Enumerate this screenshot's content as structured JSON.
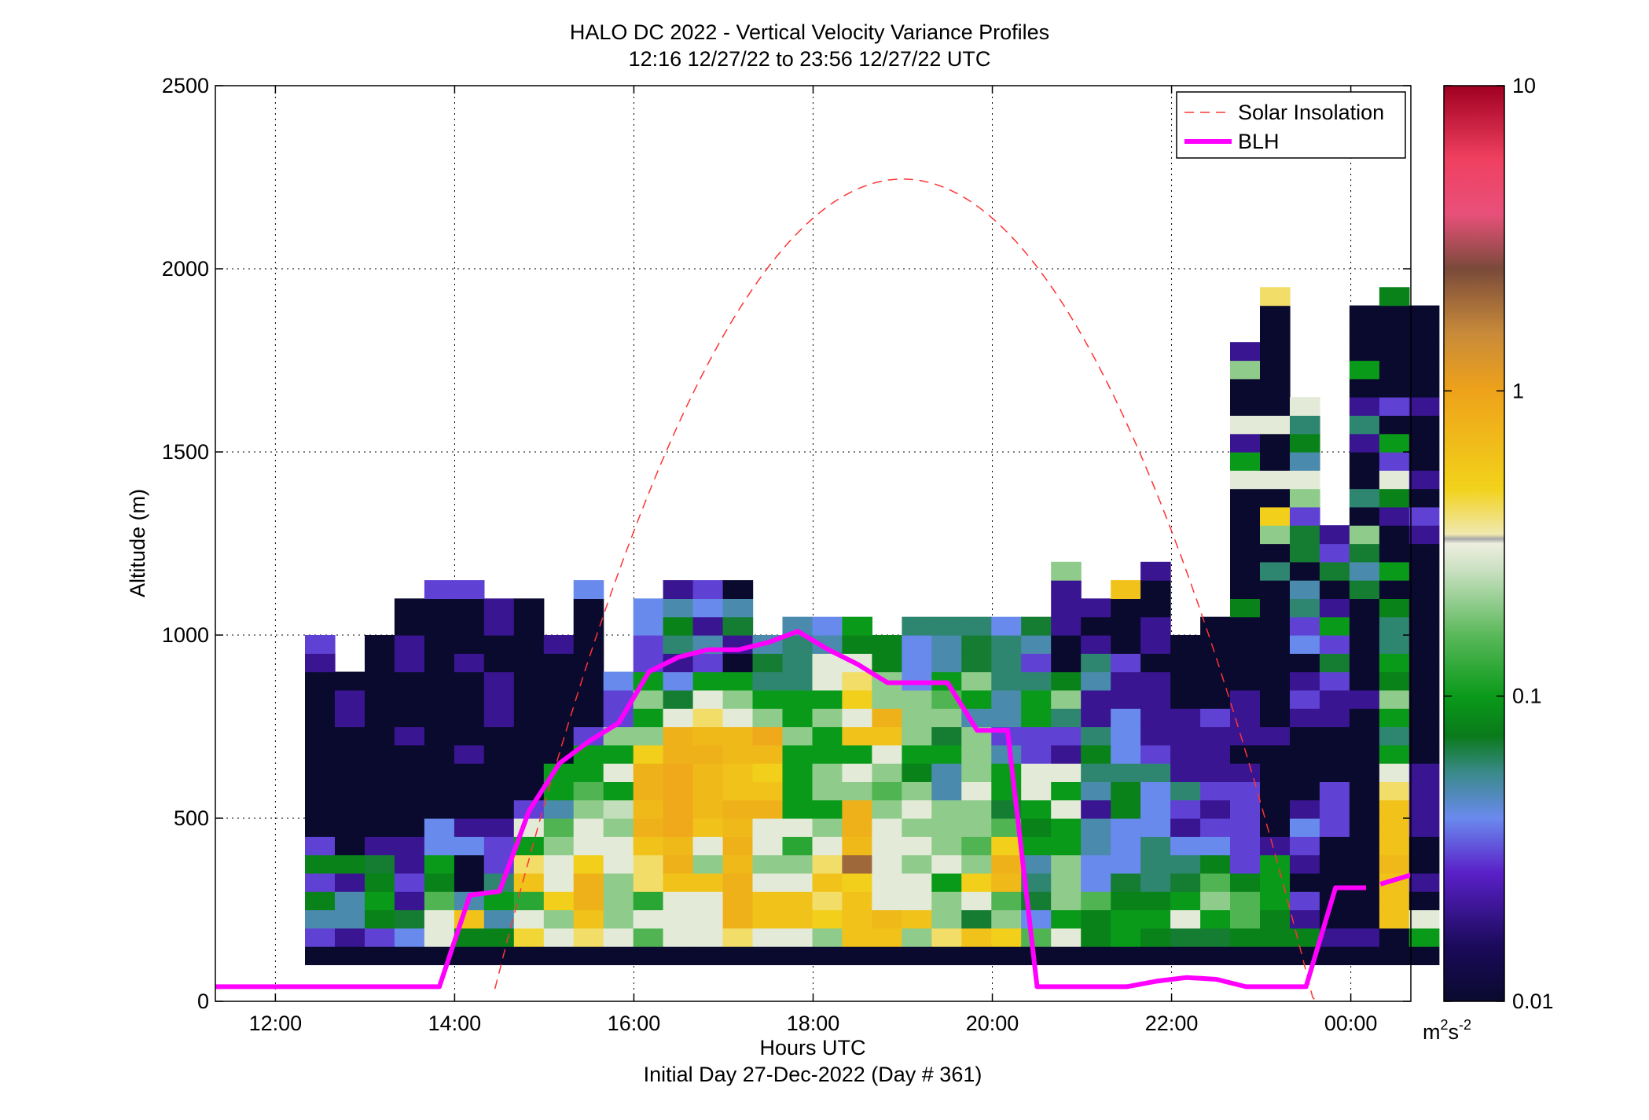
{
  "chart_data": {
    "type": "heatmap",
    "title_line1": "HALO DC 2022 - Vertical Velocity Variance Profiles",
    "title_line2": "12:16 12/27/22 to 23:56 12/27/22  UTC",
    "xlabel": "Hours UTC",
    "xlabel2": "Initial Day 27-Dec-2022 (Day # 361)",
    "ylabel": "Altitude (m)",
    "xlim": [
      11.33,
      24.67
    ],
    "ylim": [
      0,
      2500
    ],
    "grid": true,
    "x_ticks": [
      12,
      14,
      16,
      18,
      20,
      22,
      24
    ],
    "x_tick_labels": [
      "12:00",
      "14:00",
      "16:00",
      "18:00",
      "20:00",
      "22:00",
      "00:00"
    ],
    "y_ticks": [
      0,
      500,
      1000,
      1500,
      2000,
      2500
    ],
    "y_tick_labels": [
      "0",
      "500",
      "1000",
      "1500",
      "2000",
      "2500"
    ],
    "colorbar": {
      "scale": "log",
      "range": [
        0.01,
        10
      ],
      "ticks": [
        0.01,
        0.1,
        1,
        10
      ],
      "tick_labels": [
        "0.01",
        "0.1",
        "1",
        "10"
      ],
      "unit_base": "m",
      "unit_sup1": "2",
      "unit_mid": "s",
      "unit_sup2": "-2"
    },
    "legend": {
      "placement": "top-right",
      "entries": [
        {
          "label": "Solar Insolation",
          "style": "dashed",
          "color": "#ff3333"
        },
        {
          "label": "BLH",
          "style": "solid",
          "color": "#ff00ff"
        }
      ]
    },
    "heatmap": {
      "x_start": 12.33,
      "x_step": 0.333,
      "y_start": 100,
      "y_step": 50,
      "note_values": "m2 s-2",
      "columns": [
        [
          0.01,
          0.03,
          0.05,
          0.08,
          0.03,
          0.08,
          0.03,
          0.01,
          0.01,
          0.01,
          0.01,
          0.01,
          0.01,
          0.01,
          0.01,
          0.01,
          0.02,
          0.03
        ],
        [
          0.01,
          0.02,
          0.05,
          0.05,
          0.02,
          0.08,
          0.01,
          0.01,
          0.01,
          0.01,
          0.01,
          0.01,
          0.01,
          0.02,
          0.02,
          0.01
        ],
        [
          0.01,
          0.03,
          0.08,
          0.1,
          0.08,
          0.07,
          0.02,
          0.01,
          0.01,
          0.01,
          0.01,
          0.01,
          0.01,
          0.01,
          0.01,
          0.01,
          0.01,
          0.01
        ],
        [
          0.01,
          0.04,
          0.07,
          0.02,
          0.03,
          0.02,
          0.02,
          0.01,
          0.01,
          0.01,
          0.01,
          0.01,
          0.02,
          0.01,
          0.01,
          0.01,
          0.02,
          0.02,
          0.01,
          0.01
        ],
        [
          0.01,
          0.3,
          0.3,
          0.15,
          0.08,
          0.1,
          0.04,
          0.04,
          0.01,
          0.01,
          0.01,
          0.01,
          0.01,
          0.01,
          0.01,
          0.01,
          0.01,
          0.01,
          0.01,
          0.01,
          0.03
        ],
        [
          0.01,
          0.08,
          0.6,
          0.05,
          0.01,
          0.01,
          0.04,
          0.02,
          0.01,
          0.01,
          0.01,
          0.02,
          0.01,
          0.01,
          0.01,
          0.01,
          0.02,
          0.01,
          0.01,
          0.01,
          0.03
        ],
        [
          0.01,
          0.08,
          0.05,
          0.1,
          0.06,
          0.03,
          0.03,
          0.02,
          0.01,
          0.01,
          0.01,
          0.01,
          0.01,
          0.02,
          0.02,
          0.02,
          0.01,
          0.01,
          0.02,
          0.02
        ],
        [
          0.01,
          0.45,
          0.3,
          0.12,
          0.6,
          0.4,
          0.1,
          0.3,
          0.03,
          0.01,
          0.01,
          0.01,
          0.01,
          0.01,
          0.01,
          0.01,
          0.01,
          0.01,
          0.01,
          0.01
        ],
        [
          0.01,
          0.3,
          0.2,
          0.5,
          0.3,
          0.3,
          0.2,
          0.15,
          0.05,
          0.1,
          0.1,
          0.01,
          0.01,
          0.01,
          0.01,
          0.01,
          0.01,
          0.02
        ],
        [
          0.01,
          0.4,
          0.6,
          0.8,
          0.8,
          0.5,
          0.3,
          0.3,
          0.2,
          0.15,
          0.1,
          0.1,
          0.03,
          0.01,
          0.01,
          0.01,
          0.01,
          0.01,
          0.01,
          0.01,
          0.04
        ],
        [
          0.01,
          0.3,
          0.2,
          0.2,
          0.2,
          0.3,
          0.3,
          0.2,
          0.25,
          0.1,
          0.3,
          0.1,
          0.2,
          0.03,
          0.03,
          0.04
        ],
        [
          0.01,
          0.15,
          0.3,
          0.12,
          0.4,
          0.4,
          0.6,
          0.8,
          0.7,
          0.8,
          0.8,
          0.5,
          0.2,
          0.1,
          0.2,
          0.1,
          0.03,
          0.03,
          0.04,
          0.04
        ],
        [
          0.01,
          0.3,
          0.3,
          0.3,
          0.6,
          0.8,
          0.7,
          0.9,
          0.9,
          0.9,
          0.9,
          0.8,
          0.8,
          0.3,
          0.07,
          0.04,
          0.02,
          0.06,
          0.08,
          0.05,
          0.02
        ],
        [
          0.01,
          0.3,
          0.3,
          0.3,
          0.6,
          0.2,
          0.3,
          0.6,
          0.7,
          0.7,
          0.7,
          0.8,
          0.7,
          0.4,
          0.3,
          0.1,
          0.03,
          0.05,
          0.02,
          0.04,
          0.03
        ],
        [
          0.01,
          0.4,
          0.8,
          0.8,
          0.8,
          0.7,
          0.8,
          0.7,
          0.8,
          0.6,
          0.6,
          0.7,
          0.7,
          0.3,
          0.2,
          0.1,
          0.01,
          0.02,
          0.07,
          0.05,
          0.01
        ],
        [
          0.01,
          0.3,
          0.6,
          0.6,
          0.3,
          0.2,
          0.3,
          0.3,
          0.8,
          0.6,
          0.5,
          0.7,
          0.9,
          0.2,
          0.1,
          0.06,
          0.07,
          0.05
        ],
        [
          0.01,
          0.3,
          0.6,
          0.6,
          0.3,
          0.2,
          0.12,
          0.3,
          0.1,
          0.1,
          0.1,
          0.1,
          0.2,
          0.1,
          0.1,
          0.06,
          0.06,
          0.06,
          0.05
        ],
        [
          0.01,
          0.2,
          0.5,
          0.4,
          0.6,
          0.4,
          0.3,
          0.2,
          0.1,
          0.2,
          0.2,
          0.1,
          0.1,
          0.2,
          0.1,
          0.3,
          0.3,
          0.05,
          0.04
        ],
        [
          0.01,
          0.6,
          0.6,
          0.6,
          0.5,
          2.0,
          0.7,
          0.8,
          0.8,
          0.2,
          0.3,
          0.1,
          0.6,
          0.3,
          0.5,
          0.4,
          0.3,
          0.08,
          0.1
        ],
        [
          0.01,
          0.6,
          0.7,
          0.3,
          0.3,
          0.3,
          0.3,
          0.3,
          0.2,
          0.15,
          0.2,
          0.3,
          0.6,
          0.8,
          0.2,
          0.2,
          0.08,
          0.08
        ],
        [
          0.01,
          0.2,
          0.6,
          0.3,
          0.3,
          0.2,
          0.3,
          0.2,
          0.3,
          0.2,
          0.08,
          0.1,
          0.2,
          0.2,
          0.2,
          0.04,
          0.04,
          0.04,
          0.06
        ],
        [
          0.01,
          0.4,
          0.2,
          0.2,
          0.1,
          0.3,
          0.2,
          0.2,
          0.2,
          0.05,
          0.05,
          0.1,
          0.07,
          0.2,
          0.15,
          0.1,
          0.05,
          0.05,
          0.06
        ],
        [
          0.01,
          0.6,
          0.07,
          0.3,
          0.5,
          0.2,
          0.15,
          0.2,
          0.2,
          0.3,
          0.2,
          0.2,
          0.2,
          0.05,
          0.1,
          0.2,
          0.07,
          0.07,
          0.06
        ],
        [
          0.01,
          0.5,
          0.2,
          0.15,
          0.7,
          0.8,
          0.5,
          0.15,
          0.07,
          0.1,
          0.1,
          0.05,
          0.03,
          0.05,
          0.05,
          0.06,
          0.06,
          0.06,
          0.04
        ],
        [
          0.01,
          0.15,
          0.04,
          0.07,
          0.06,
          0.05,
          0.1,
          0.08,
          0.1,
          0.3,
          0.3,
          0.03,
          0.03,
          0.1,
          0.1,
          0.06,
          0.03,
          0.05,
          0.07
        ],
        [
          0.01,
          0.3,
          0.1,
          0.2,
          0.2,
          0.2,
          0.1,
          0.1,
          0.3,
          0.1,
          0.3,
          0.02,
          0.03,
          0.06,
          0.2,
          0.08,
          0.01,
          0.01,
          0.02,
          0.02,
          0.02,
          0.2
        ],
        [
          0.01,
          0.08,
          0.08,
          0.15,
          0.04,
          0.04,
          0.05,
          0.05,
          0.02,
          0.05,
          0.06,
          0.08,
          0.06,
          0.02,
          0.02,
          0.05,
          0.06,
          0.02,
          0.01,
          0.02
        ],
        [
          0.01,
          0.1,
          0.1,
          0.08,
          0.07,
          0.04,
          0.04,
          0.04,
          0.08,
          0.08,
          0.06,
          0.04,
          0.04,
          0.04,
          0.02,
          0.02,
          0.03,
          0.01,
          0.01,
          0.01,
          0.6
        ],
        [
          0.01,
          0.08,
          0.1,
          0.08,
          0.06,
          0.06,
          0.06,
          0.04,
          0.04,
          0.04,
          0.06,
          0.03,
          0.02,
          0.02,
          0.02,
          0.02,
          0.01,
          0.02,
          0.02,
          0.01,
          0.01,
          0.02
        ],
        [
          0.01,
          0.07,
          0.3,
          0.1,
          0.07,
          0.06,
          0.04,
          0.02,
          0.03,
          0.06,
          0.02,
          0.02,
          0.02,
          0.02,
          0.01,
          0.01,
          0.01,
          0.01
        ],
        [
          0.01,
          0.07,
          0.1,
          0.2,
          0.15,
          0.08,
          0.04,
          0.03,
          0.02,
          0.03,
          0.02,
          0.02,
          0.02,
          0.03,
          0.01,
          0.01,
          0.01,
          0.01,
          0.01
        ],
        [
          0.01,
          0.08,
          0.15,
          0.15,
          0.08,
          0.03,
          0.03,
          0.03,
          0.03,
          0.03,
          0.02,
          0.01,
          0.02,
          0.02,
          0.02,
          0.01,
          0.01,
          0.01,
          0.01,
          0.08,
          0.01,
          0.01,
          0.01,
          0.01,
          0.01,
          0.01,
          0.3,
          0.1,
          0.02,
          0.3,
          0.01,
          0.01,
          0.2,
          0.02
        ],
        [
          0.01,
          0.08,
          0.08,
          0.1,
          0.1,
          0.1,
          0.02,
          0.01,
          0.01,
          0.01,
          0.01,
          0.01,
          0.02,
          0.01,
          0.01,
          0.01,
          0.01,
          0.01,
          0.01,
          0.01,
          0.01,
          0.06,
          0.01,
          0.2,
          0.5,
          0.01,
          0.3,
          0.01,
          0.01,
          0.3,
          0.01,
          0.01,
          0.01,
          0.01,
          0.01,
          0.01,
          0.4
        ],
        [
          0.01,
          0.08,
          0.02,
          0.03,
          0.01,
          0.02,
          0.03,
          0.04,
          0.02,
          0.01,
          0.01,
          0.01,
          0.01,
          0.02,
          0.03,
          0.02,
          0.01,
          0.04,
          0.03,
          0.06,
          0.05,
          0.01,
          0.07,
          0.07,
          0.03,
          0.2,
          0.3,
          0.05,
          0.08,
          0.06,
          0.3
        ],
        [
          0.01,
          0.02,
          0.01,
          0.01,
          0.01,
          0.01,
          0.01,
          0.03,
          0.03,
          0.03,
          0.01,
          0.01,
          0.01,
          0.02,
          0.02,
          0.03,
          0.07,
          0.03,
          0.1,
          0.02,
          0.01,
          0.07,
          0.03,
          0.02
        ],
        [
          0.01,
          0.02,
          0.01,
          0.01,
          0.01,
          0.01,
          0.01,
          0.01,
          0.01,
          0.01,
          0.01,
          0.01,
          0.01,
          0.01,
          0.02,
          0.01,
          0.01,
          0.01,
          0.01,
          0.01,
          0.07,
          0.05,
          0.07,
          0.2,
          0.01,
          0.06,
          0.01,
          0.01,
          0.02,
          0.06,
          0.02,
          0.01,
          0.1,
          0.01,
          0.01,
          0.01
        ],
        [
          0.01,
          0.01,
          0.6,
          0.6,
          0.6,
          0.7,
          0.6,
          0.6,
          0.6,
          0.4,
          0.3,
          0.1,
          0.06,
          0.1,
          0.2,
          0.08,
          0.1,
          0.06,
          0.06,
          0.08,
          0.01,
          0.1,
          0.01,
          0.01,
          0.02,
          0.08,
          0.3,
          0.03,
          0.1,
          0.01,
          0.03,
          0.01,
          0.01,
          0.01,
          0.01,
          0.01,
          0.08
        ],
        [
          0.01,
          0.1,
          0.3,
          0.01,
          0.02,
          0.01,
          0.01,
          0.02,
          0.02,
          0.02,
          0.02,
          0.01,
          0.01,
          0.01,
          0.01,
          0.01,
          0.01,
          0.01,
          0.01,
          0.01,
          0.01,
          0.01,
          0.01,
          0.02,
          0.03,
          0.01,
          0.02,
          0.01,
          0.01,
          0.01,
          0.02,
          0.01,
          0.01,
          0.01,
          0.01,
          0.01
        ]
      ]
    },
    "blh": {
      "x": [
        11.33,
        13.83,
        14.17,
        14.5,
        14.83,
        15.17,
        15.5,
        15.83,
        16.17,
        16.5,
        16.83,
        17.17,
        17.5,
        17.83,
        18.17,
        18.5,
        18.83,
        19.17,
        19.5,
        19.83,
        20.17,
        20.5,
        20.83,
        21.17,
        21.5,
        21.83,
        22.17,
        22.5,
        22.83,
        23.17,
        23.5,
        23.83,
        24.17
      ],
      "y": [
        40,
        40,
        290,
        300,
        520,
        650,
        710,
        760,
        900,
        940,
        960,
        960,
        980,
        1010,
        960,
        920,
        870,
        870,
        870,
        740,
        740,
        40,
        40,
        40,
        40,
        55,
        65,
        60,
        40,
        40,
        40,
        310,
        310
      ],
      "extra_segment_x": [
        24.33,
        24.67
      ],
      "extra_segment_y": [
        320,
        345
      ]
    },
    "solar": {
      "peak_x": 19.0,
      "peak_y": 2245,
      "zero_x1": 14.45,
      "zero_x2": 23.62
    }
  }
}
